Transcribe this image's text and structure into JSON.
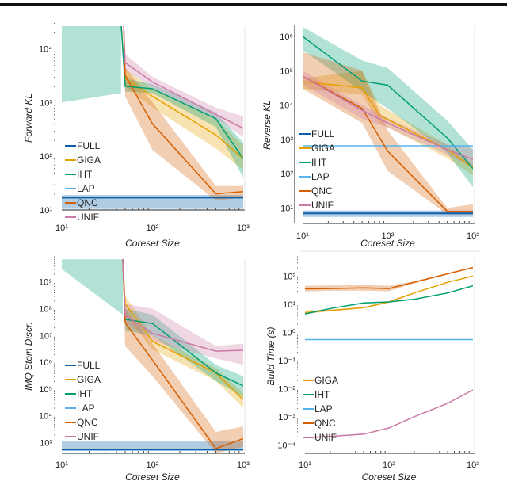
{
  "figure": {
    "colors": {
      "FULL": "#0a5fa8",
      "GIGA": "#e69f00",
      "IHT": "#009e73",
      "LAP": "#56b4e9",
      "QNC": "#d55e00",
      "UNIF": "#cc79a7"
    }
  },
  "chart_data": [
    {
      "type": "line",
      "title": "",
      "xlabel": "Coreset Size",
      "ylabel": "Forward KL",
      "xscale": "log",
      "yscale": "log",
      "xlim": [
        10,
        1000
      ],
      "ylim_exp": [
        1,
        4.42
      ],
      "x_tick_labels": [
        "10¹",
        "10²",
        "10³"
      ],
      "y_tick_labels": [
        "10¹",
        "10²",
        "10³",
        "10⁴"
      ],
      "grid": false,
      "legend": {
        "placement": "bottom-left",
        "entries": [
          "FULL",
          "GIGA",
          "IHT",
          "LAP",
          "QNC",
          "UNIF"
        ]
      },
      "series": [
        {
          "name": "FULL",
          "x": [
            10,
            1000
          ],
          "y": [
            17,
            17
          ],
          "lo": [
            10.5,
            10.5
          ],
          "hi": [
            19,
            19
          ]
        },
        {
          "name": "GIGA",
          "x": [
            45,
            50,
            100,
            500,
            1000
          ],
          "y": [
            30000,
            2800,
            1300,
            250,
            90
          ],
          "lo": [
            30000,
            2000,
            800,
            140,
            55
          ],
          "hi": [
            30000,
            4200,
            1800,
            500,
            160
          ]
        },
        {
          "name": "IHT",
          "x": [
            45,
            50,
            100,
            500,
            1000
          ],
          "y": [
            30000,
            2000,
            1800,
            500,
            90
          ],
          "lo": [
            30000,
            1600,
            1500,
            350,
            40
          ],
          "hi": [
            30000,
            2800,
            2200,
            650,
            180
          ]
        },
        {
          "name": "IHT-band-left",
          "x": [
            10,
            45
          ],
          "y": [
            null,
            null
          ],
          "lo": [
            1000,
            1500
          ],
          "hi": [
            30000,
            30000
          ]
        },
        {
          "name": "QNC",
          "x": [
            48,
            50,
            100,
            500,
            1000
          ],
          "y": [
            30000,
            3200,
            400,
            20,
            22
          ],
          "lo": [
            30000,
            1300,
            130,
            15,
            17
          ],
          "hi": [
            30000,
            4500,
            1000,
            28,
            28
          ]
        },
        {
          "name": "UNIF",
          "x": [
            48,
            50,
            100,
            500,
            1000
          ],
          "y": [
            30000,
            5500,
            2400,
            600,
            330
          ],
          "lo": [
            30000,
            4000,
            1900,
            500,
            230
          ],
          "hi": [
            30000,
            8000,
            3000,
            800,
            550
          ]
        }
      ]
    },
    {
      "type": "line",
      "title": "",
      "xlabel": "Coreset Size",
      "ylabel": "Reverse KL",
      "xscale": "log",
      "yscale": "log",
      "xlim": [
        10,
        1000
      ],
      "ylim_exp": [
        0.55,
        6.3
      ],
      "x_tick_labels": [
        "10¹",
        "10²",
        "10³"
      ],
      "y_tick_labels": [
        "10¹",
        "10²",
        "10³",
        "10⁴",
        "10⁵",
        "10⁶"
      ],
      "grid": false,
      "legend": {
        "placement": "bottom-left",
        "entries": [
          "FULL",
          "GIGA",
          "IHT",
          "LAP",
          "QNC",
          "UNIF"
        ]
      },
      "series": [
        {
          "name": "FULL",
          "x": [
            10,
            1000
          ],
          "y": [
            7,
            7
          ],
          "lo": [
            5.5,
            5.5
          ],
          "hi": [
            8.5,
            8.5
          ]
        },
        {
          "name": "GIGA",
          "x": [
            10,
            50,
            80,
            500,
            1000
          ],
          "y": [
            48000,
            32000,
            5000,
            500,
            150
          ],
          "lo": [
            30000,
            20000,
            3000,
            280,
            90
          ],
          "hi": [
            60000,
            100000,
            10000,
            700,
            200
          ]
        },
        {
          "name": "IHT",
          "x": [
            10,
            50,
            100,
            500,
            1000
          ],
          "y": [
            1000000,
            50000,
            38000,
            1100,
            140
          ],
          "lo": [
            400000,
            25000,
            8000,
            400,
            40
          ],
          "hi": [
            1900000,
            200000,
            120000,
            3500,
            500
          ]
        },
        {
          "name": "LAP",
          "x": [
            10,
            1000
          ],
          "y": [
            650,
            650
          ],
          "lo": [
            650,
            650
          ],
          "hi": [
            650,
            650
          ]
        },
        {
          "name": "QNC",
          "x": [
            10,
            50,
            100,
            500,
            1000
          ],
          "y": [
            70000,
            8000,
            450,
            8,
            8
          ],
          "lo": [
            30000,
            3000,
            120,
            6.5,
            6.5
          ],
          "hi": [
            350000,
            100000,
            1800,
            10,
            13
          ]
        },
        {
          "name": "UNIF",
          "x": [
            10,
            50,
            100,
            500,
            1000
          ],
          "y": [
            70000,
            7000,
            3000,
            500,
            260
          ],
          "lo": [
            40000,
            4000,
            2200,
            350,
            150
          ],
          "hi": [
            100000,
            10000,
            4200,
            700,
            550
          ]
        }
      ]
    },
    {
      "type": "line",
      "title": "",
      "xlabel": "Coreset Size",
      "ylabel": "IMQ Stein Discr.",
      "xscale": "log",
      "yscale": "log",
      "xlim": [
        10,
        1000
      ],
      "ylim_exp": [
        2.6,
        9.85
      ],
      "x_tick_labels": [
        "10¹",
        "10²",
        "10³"
      ],
      "y_tick_labels": [
        "10³",
        "10⁴",
        "10⁵",
        "10⁶",
        "10⁷",
        "10⁸",
        "10⁹"
      ],
      "grid": false,
      "legend": {
        "placement": "bottom-left",
        "entries": [
          "FULL",
          "GIGA",
          "IHT",
          "LAP",
          "QNC",
          "UNIF"
        ]
      },
      "series": [
        {
          "name": "FULL",
          "x": [
            10,
            1000
          ],
          "y": [
            550,
            550
          ],
          "lo": [
            500,
            500
          ],
          "hi": [
            1100,
            1100
          ]
        },
        {
          "name": "GIGA",
          "x": [
            47,
            50,
            100,
            500,
            1000
          ],
          "y": [
            7000000000,
            150000000,
            6000000,
            400000,
            40000
          ],
          "lo": [
            7000000000,
            60000000,
            3000000,
            200000,
            20000
          ],
          "hi": [
            7000000000,
            300000000,
            10000000,
            600000,
            70000
          ]
        },
        {
          "name": "IHT",
          "x": [
            47,
            50,
            100,
            500,
            1000
          ],
          "y": [
            7000000000,
            40000000,
            28000000,
            400000,
            130000
          ],
          "lo": [
            7000000000,
            15000000,
            10000000,
            200000,
            50000
          ],
          "hi": [
            7000000000,
            100000000,
            60000000,
            800000,
            300000
          ]
        },
        {
          "name": "IHT-band-left",
          "x": [
            10,
            47
          ],
          "y": [
            null,
            null
          ],
          "lo": [
            3000000000,
            60000000
          ],
          "hi": [
            7000000000,
            7000000000
          ]
        },
        {
          "name": "QNC",
          "x": [
            47,
            50,
            100,
            500,
            1000
          ],
          "y": [
            7000000000,
            30000000,
            1200000,
            600,
            1400
          ],
          "lo": [
            7000000000,
            4000000,
            300000,
            400,
            700
          ],
          "hi": [
            7000000000,
            100000000,
            5000000,
            2500,
            4000
          ]
        },
        {
          "name": "UNIF",
          "x": [
            47,
            50,
            100,
            500,
            1000
          ],
          "y": [
            7000000000,
            55000000,
            12000000,
            2600000,
            2800000
          ],
          "lo": [
            7000000000,
            30000000,
            6000000,
            1400000,
            800000
          ],
          "hi": [
            7000000000,
            150000000,
            100000000,
            4000000,
            5000000
          ]
        }
      ]
    },
    {
      "type": "line",
      "title": "",
      "xlabel": "Coreset Size",
      "ylabel": "Build Time (s)",
      "xscale": "log",
      "yscale": "log",
      "xlim": [
        10,
        1000
      ],
      "ylim_exp": [
        -4.3,
        2.6
      ],
      "x_tick_labels": [
        "10¹",
        "10²",
        "10³"
      ],
      "y_tick_labels": [
        "10⁻⁴",
        "10⁻³",
        "10⁻²",
        "10⁻¹",
        "10⁰",
        "10¹",
        "10²"
      ],
      "grid": false,
      "legend": {
        "placement": "bottom-left",
        "entries": [
          "GIGA",
          "IHT",
          "LAP",
          "QNC",
          "UNIF"
        ]
      },
      "series": [
        {
          "name": "GIGA",
          "x": [
            10,
            20,
            50,
            100,
            200,
            500,
            1000
          ],
          "y": [
            5,
            6,
            7.5,
            12,
            25,
            60,
            100
          ],
          "lo": [
            4.5,
            5.5,
            7,
            11,
            24,
            58,
            95
          ],
          "hi": [
            6,
            6.5,
            8,
            13,
            26,
            62,
            105
          ]
        },
        {
          "name": "IHT",
          "x": [
            10,
            20,
            50,
            100,
            200,
            500,
            1000
          ],
          "y": [
            4.5,
            7,
            11,
            12,
            15,
            25,
            45
          ],
          "lo": [
            4.2,
            6.7,
            10.5,
            11.5,
            14.5,
            24,
            43
          ],
          "hi": [
            4.8,
            7.3,
            11.5,
            12.5,
            15.5,
            26,
            47
          ]
        },
        {
          "name": "LAP",
          "x": [
            10,
            1000
          ],
          "y": [
            0.55,
            0.55
          ],
          "lo": [
            0.55,
            0.55
          ],
          "hi": [
            0.55,
            0.55
          ]
        },
        {
          "name": "QNC",
          "x": [
            10,
            20,
            50,
            100,
            200,
            500,
            1000
          ],
          "y": [
            35,
            36,
            38,
            36,
            60,
            120,
            200
          ],
          "lo": [
            28,
            30,
            30,
            29,
            55,
            115,
            190
          ],
          "hi": [
            45,
            46,
            48,
            45,
            66,
            128,
            210
          ]
        },
        {
          "name": "UNIF",
          "x": [
            10,
            20,
            50,
            100,
            200,
            500,
            1000
          ],
          "y": [
            0.00018,
            0.0002,
            0.00024,
            0.0004,
            0.001,
            0.003,
            0.009
          ],
          "lo": [
            0.00017,
            0.00019,
            0.00023,
            0.00038,
            0.00095,
            0.0029,
            0.0087
          ],
          "hi": [
            0.00019,
            0.00021,
            0.00025,
            0.00042,
            0.00105,
            0.0031,
            0.0093
          ]
        }
      ]
    }
  ]
}
